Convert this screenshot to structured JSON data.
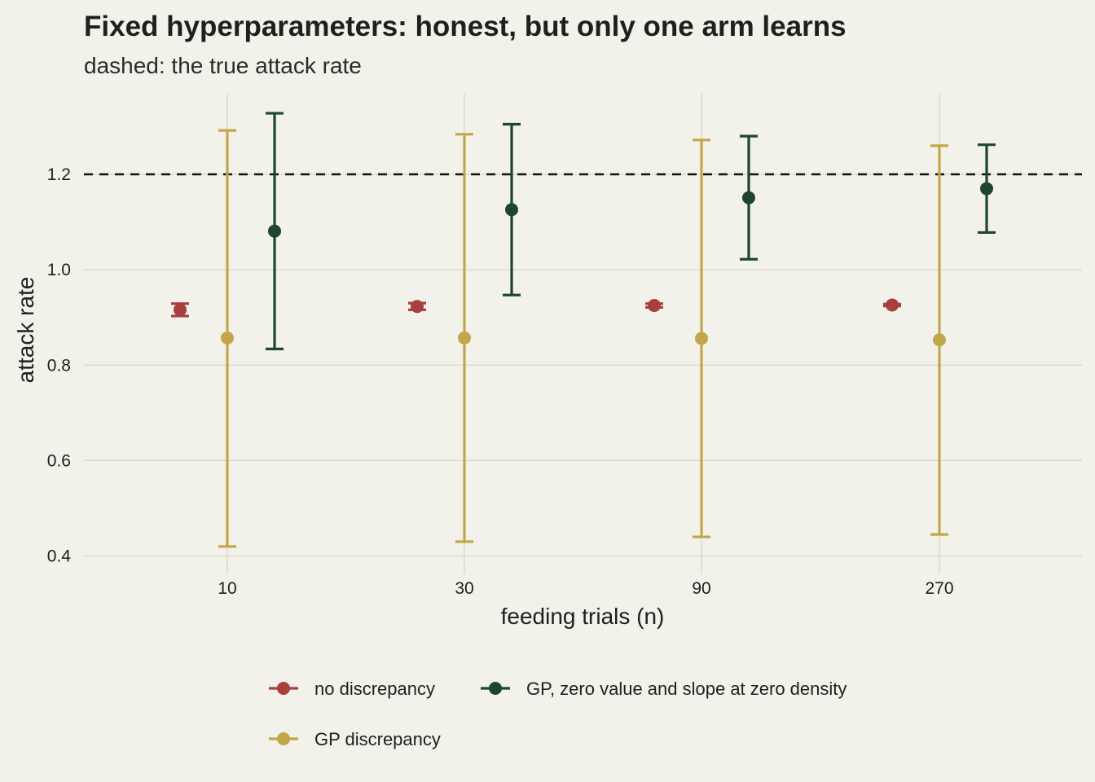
{
  "colors": {
    "background": "#f2f1ea",
    "grid": "#d7d7cc",
    "text": "#1f1f1f",
    "reference_line": "#111111"
  },
  "chart_data": {
    "type": "errorbar",
    "title": "Fixed hyperparameters: honest, but only one arm learns",
    "subtitle": "dashed: the true attack rate",
    "xlabel": "feeding trials (n)",
    "ylabel": "attack rate",
    "categories": [
      "10",
      "30",
      "90",
      "270"
    ],
    "y_ticks": [
      "0.4",
      "0.6",
      "0.8",
      "1.0",
      "1.2"
    ],
    "ylim": [
      0.38,
      1.37
    ],
    "grid": true,
    "legend_position": "bottom",
    "reference_line": {
      "y": 1.2,
      "style": "dashed"
    },
    "series": [
      {
        "name": "no discrepancy",
        "color": "#a83e3e",
        "points": [
          {
            "x": "10",
            "y": 0.916,
            "lo": 0.903,
            "hi": 0.929
          },
          {
            "x": "30",
            "y": 0.923,
            "lo": 0.916,
            "hi": 0.93
          },
          {
            "x": "90",
            "y": 0.925,
            "lo": 0.921,
            "hi": 0.929
          },
          {
            "x": "270",
            "y": 0.926,
            "lo": 0.924,
            "hi": 0.928
          }
        ]
      },
      {
        "name": "GP discrepancy",
        "color": "#c2a74a",
        "points": [
          {
            "x": "10",
            "y": 0.857,
            "lo": 0.42,
            "hi": 1.292
          },
          {
            "x": "30",
            "y": 0.857,
            "lo": 0.43,
            "hi": 1.284
          },
          {
            "x": "90",
            "y": 0.856,
            "lo": 0.44,
            "hi": 1.272
          },
          {
            "x": "270",
            "y": 0.853,
            "lo": 0.445,
            "hi": 1.26
          }
        ]
      },
      {
        "name": "GP, zero value and slope at zero density",
        "color": "#1f4530",
        "points": [
          {
            "x": "10",
            "y": 1.081,
            "lo": 0.834,
            "hi": 1.328
          },
          {
            "x": "30",
            "y": 1.126,
            "lo": 0.947,
            "hi": 1.305
          },
          {
            "x": "90",
            "y": 1.151,
            "lo": 1.022,
            "hi": 1.28
          },
          {
            "x": "270",
            "y": 1.17,
            "lo": 1.078,
            "hi": 1.262
          }
        ]
      }
    ]
  }
}
